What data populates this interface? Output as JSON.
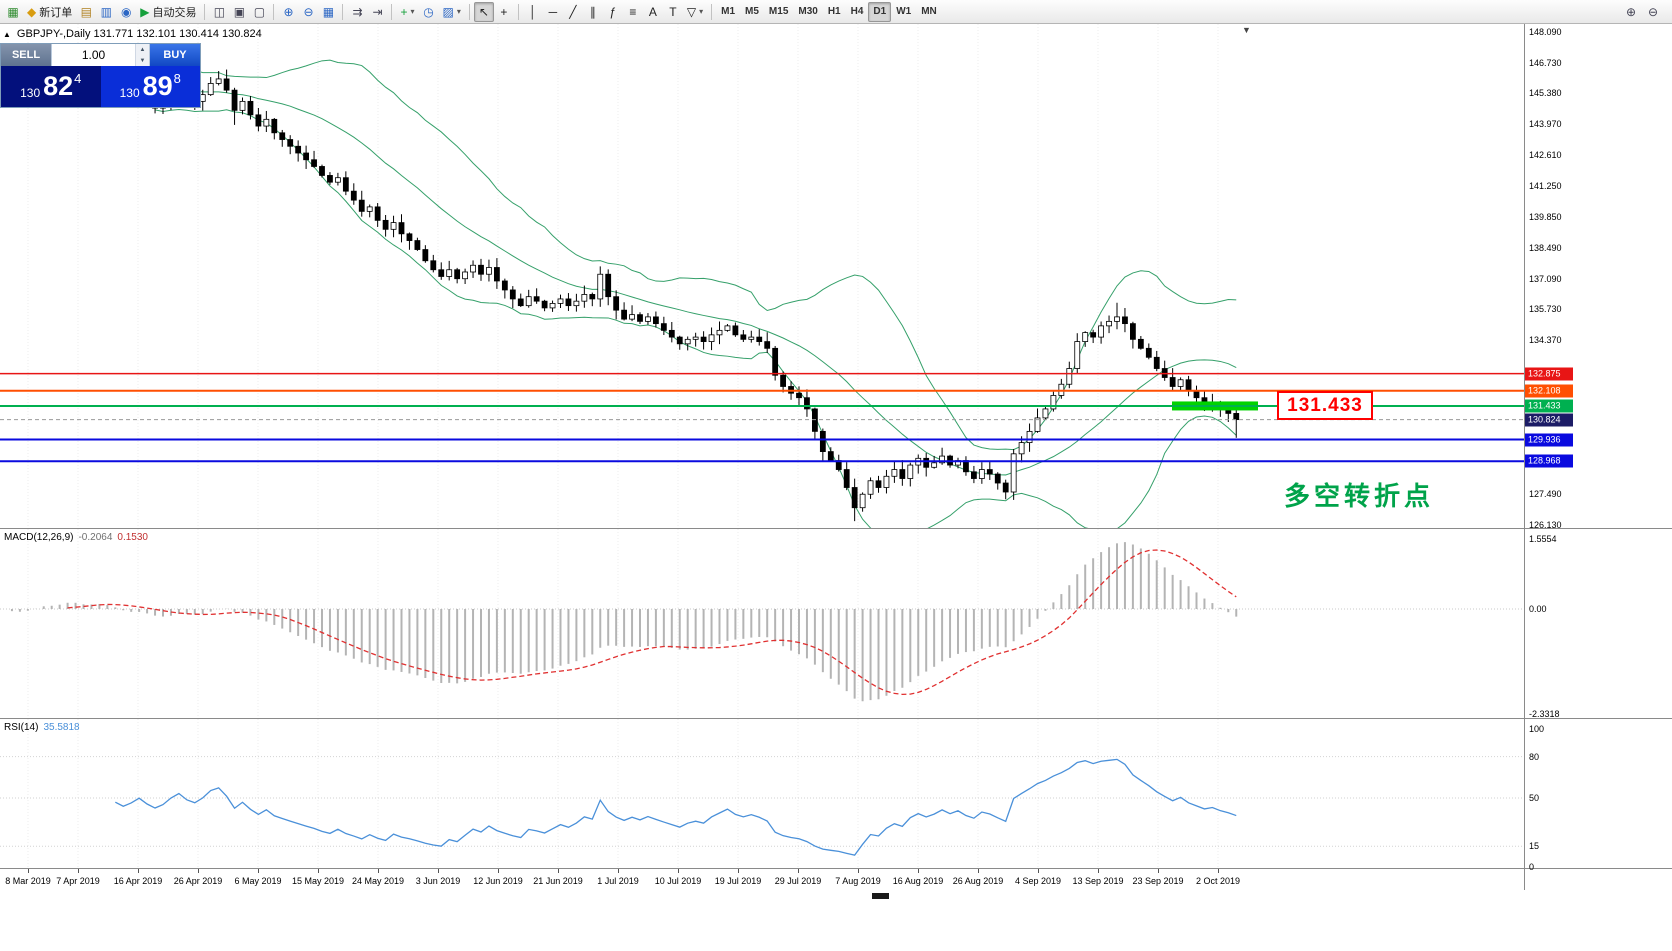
{
  "toolbar": {
    "caret_glyph": "▾",
    "groups": [
      {
        "items": [
          {
            "name": "new-chart-button",
            "glyph": "▦",
            "color": "#2e8b2e"
          },
          {
            "name": "new-order-button",
            "glyph": "◆",
            "color": "#d89c10",
            "label": "新订单"
          },
          {
            "name": "history-center-button",
            "glyph": "▤",
            "color": "#b08020"
          },
          {
            "name": "market-watch-button",
            "glyph": "▥",
            "color": "#2b66c4"
          },
          {
            "name": "navigator-button",
            "glyph": "◉",
            "color": "#2b66c4"
          },
          {
            "name": "auto-trading-button",
            "glyph": "▶",
            "color": "#16a03c",
            "label": "自动交易"
          }
        ]
      },
      {
        "items": [
          {
            "name": "tile-windows-button",
            "glyph": "◫",
            "color": "#445"
          },
          {
            "name": "cascade-windows-button",
            "glyph": "▣",
            "color": "#445"
          },
          {
            "name": "arrange-windows-button",
            "glyph": "▢",
            "color": "#445"
          }
        ]
      },
      {
        "items": [
          {
            "name": "zoom-in-button",
            "glyph": "⊕",
            "color": "#2b66c4"
          },
          {
            "name": "zoom-out-button",
            "glyph": "⊖",
            "color": "#2b66c4"
          },
          {
            "name": "grid-button",
            "glyph": "▦",
            "color": "#2b66c4"
          }
        ]
      },
      {
        "items": [
          {
            "name": "auto-scroll-button",
            "glyph": "⇉",
            "color": "#445"
          },
          {
            "name": "chart-shift-button",
            "glyph": "⇥",
            "color": "#445"
          }
        ]
      },
      {
        "items": [
          {
            "name": "new-object-button",
            "glyph": "+",
            "color": "#16a03c",
            "caret": true
          },
          {
            "name": "period-button",
            "glyph": "◷",
            "color": "#2b66c4"
          },
          {
            "name": "template-button",
            "glyph": "▨",
            "color": "#2b66c4",
            "caret": true
          }
        ]
      },
      {
        "items": [
          {
            "name": "cursor-button",
            "glyph": "↖",
            "color": "#222",
            "active": true
          },
          {
            "name": "crosshair-button",
            "glyph": "+",
            "color": "#222"
          }
        ]
      },
      {
        "items": [
          {
            "name": "vertical-line-button",
            "glyph": "│",
            "color": "#222"
          },
          {
            "name": "horizontal-line-button",
            "glyph": "─",
            "color": "#222"
          },
          {
            "name": "trendline-button",
            "glyph": "╱",
            "color": "#222"
          },
          {
            "name": "channel-button",
            "glyph": "∥",
            "color": "#222"
          },
          {
            "name": "fibonacci-button",
            "glyph": "ƒ",
            "color": "#222"
          },
          {
            "name": "levels-button",
            "glyph": "≡",
            "color": "#222"
          },
          {
            "name": "text-button",
            "glyph": "A",
            "color": "#222"
          },
          {
            "name": "label-button",
            "glyph": "T",
            "color": "#222"
          },
          {
            "name": "shapes-button",
            "glyph": "▽",
            "color": "#222",
            "caret": true
          }
        ]
      }
    ],
    "timeframes": [
      "M1",
      "M5",
      "M15",
      "M30",
      "H1",
      "H4",
      "D1",
      "W1",
      "MN"
    ],
    "active_timeframe": "D1",
    "right_items": [
      {
        "name": "search-zoom-in-button",
        "glyph": "⊕",
        "color": "#445"
      },
      {
        "name": "search-zoom-out-button",
        "glyph": "⊖",
        "color": "#445"
      }
    ]
  },
  "chart": {
    "collapse_glyph": "▲",
    "shift_marker_glyph": "▼",
    "symbol_line": "GBPJPY-,Daily  131.771 132.101 130.414 130.824",
    "trade_panel": {
      "sell_label": "SELL",
      "buy_label": "BUY",
      "volume": "1.00",
      "spin_up_glyph": "▲",
      "spin_down_glyph": "▼",
      "sell": {
        "big_figure": "130",
        "pips": "82",
        "point": "4"
      },
      "buy": {
        "big_figure": "130",
        "pips": "89",
        "point": "8"
      }
    },
    "price_axis": [
      "148.090",
      "146.730",
      "145.380",
      "143.970",
      "142.610",
      "141.250",
      "139.850",
      "138.490",
      "137.090",
      "135.730",
      "134.370",
      "127.490",
      "126.130"
    ],
    "hlines": [
      {
        "price": 132.875,
        "label": "132.875",
        "color": "#e81515",
        "width": 1.5
      },
      {
        "price": 132.108,
        "label": "132.108",
        "color": "#ff4f02",
        "width": 2
      },
      {
        "price": 131.433,
        "label": "131.433",
        "color": "#00b050",
        "width": 2
      },
      {
        "price": 129.936,
        "label": "129.936",
        "color": "#0a0adf",
        "width": 2
      },
      {
        "price": 128.968,
        "label": "128.968",
        "color": "#0a0adf",
        "width": 2
      }
    ],
    "current_price": {
      "value": "130.824",
      "price": 130.824,
      "tag_color": "#1c1c66"
    },
    "highlight_segment": {
      "price": 131.433,
      "color": "#00d300"
    },
    "annotation": {
      "text": "131.433",
      "color": "#ff0000"
    },
    "note_text": "多空转折点",
    "note_color": "#00a34a"
  },
  "macd": {
    "name": "MACD(12,26,9)",
    "value_main": "-0.2064",
    "value_signal": "0.1530",
    "scale": [
      "1.5554",
      "0.00",
      "-2.3318"
    ]
  },
  "rsi": {
    "name": "RSI(14)",
    "value": "35.5818",
    "scale": [
      "100",
      "80",
      "50",
      "15",
      "0"
    ]
  },
  "time_axis": {
    "labels": [
      "8 Mar 2019",
      "7 Apr 2019",
      "16 Apr 2019",
      "26 Apr 2019",
      "6 May 2019",
      "15 May 2019",
      "24 May 2019",
      "3 Jun 2019",
      "12 Jun 2019",
      "21 Jun 2019",
      "1 Jul 2019",
      "10 Jul 2019",
      "19 Jul 2019",
      "29 Jul 2019",
      "7 Aug 2019",
      "16 Aug 2019",
      "26 Aug 2019",
      "4 Sep 2019",
      "13 Sep 2019",
      "23 Sep 2019",
      "2 Oct 2019"
    ]
  },
  "chart_data": {
    "type": "candlestick",
    "symbol": "GBPJPY-",
    "timeframe": "Daily",
    "last_ohlc": {
      "open": 131.771,
      "high": 132.101,
      "low": 130.414,
      "close": 130.824
    },
    "x_range": [
      "8 Mar 2019",
      "4 Oct 2019"
    ],
    "y_range": [
      126.13,
      148.09
    ],
    "grid": true,
    "closes_approx": [
      145.5,
      144.9,
      145.2,
      145.6,
      145.9,
      146.2,
      145.8,
      146.0,
      146.3,
      145.9,
      145.5,
      145.8,
      146.0,
      145.6,
      145.2,
      144.9,
      145.1,
      145.4,
      145.0,
      144.7,
      144.9,
      145.3,
      145.6,
      145.2,
      145.0,
      145.3,
      145.8,
      146.0,
      145.5,
      144.6,
      145.0,
      144.4,
      143.9,
      144.2,
      143.6,
      143.3,
      143.0,
      142.7,
      142.4,
      142.1,
      141.7,
      141.4,
      141.6,
      141.0,
      140.6,
      140.1,
      140.3,
      139.7,
      139.3,
      139.6,
      139.1,
      138.8,
      138.4,
      137.9,
      137.5,
      137.2,
      137.5,
      137.1,
      137.4,
      137.7,
      137.3,
      137.6,
      137.0,
      136.6,
      136.2,
      135.9,
      136.3,
      136.1,
      135.8,
      136.0,
      136.2,
      135.9,
      136.1,
      136.4,
      136.2,
      137.3,
      136.3,
      135.7,
      135.3,
      135.5,
      135.2,
      135.4,
      135.1,
      134.8,
      134.5,
      134.2,
      134.4,
      134.5,
      134.3,
      134.6,
      134.8,
      135.0,
      134.6,
      134.4,
      134.5,
      134.3,
      134.0,
      132.8,
      132.3,
      132.0,
      131.8,
      131.3,
      130.3,
      129.4,
      129.0,
      128.6,
      127.8,
      126.9,
      127.5,
      128.1,
      127.8,
      128.3,
      128.6,
      128.2,
      128.8,
      129.1,
      128.7,
      128.9,
      129.2,
      128.8,
      129.0,
      128.5,
      128.2,
      128.6,
      128.4,
      128.0,
      127.6,
      129.3,
      129.8,
      130.3,
      130.9,
      131.3,
      131.9,
      132.4,
      133.1,
      134.3,
      134.7,
      134.5,
      135.0,
      135.2,
      135.4,
      135.1,
      134.4,
      134.0,
      133.6,
      133.1,
      132.7,
      132.3,
      132.6,
      132.1,
      131.8,
      131.5,
      131.6,
      131.3,
      131.1,
      130.824
    ],
    "overlays": {
      "bollinger": {
        "period": 20,
        "deviation": 2,
        "color": "#35a06a"
      }
    },
    "hlines": [
      {
        "price": 132.875,
        "color": "#e81515"
      },
      {
        "price": 132.108,
        "color": "#ff4f02"
      },
      {
        "price": 131.433,
        "color": "#00b050"
      },
      {
        "price": 129.936,
        "color": "#0a0adf"
      },
      {
        "price": 128.968,
        "color": "#0a0adf"
      }
    ],
    "indicators": [
      {
        "type": "macd",
        "params": [
          12,
          26,
          9
        ],
        "current_main": -0.2064,
        "current_signal": 0.153,
        "scale_top": 1.5554,
        "scale_zero": 0.0,
        "scale_bottom": -2.3318,
        "histogram_color": "#b4b4b4",
        "signal_color": "#e03030"
      },
      {
        "type": "rsi",
        "params": [
          14
        ],
        "current": 35.5818,
        "levels": [
          80,
          50,
          15
        ],
        "range": [
          0,
          100
        ],
        "line_color": "#4a90d9"
      }
    ]
  }
}
